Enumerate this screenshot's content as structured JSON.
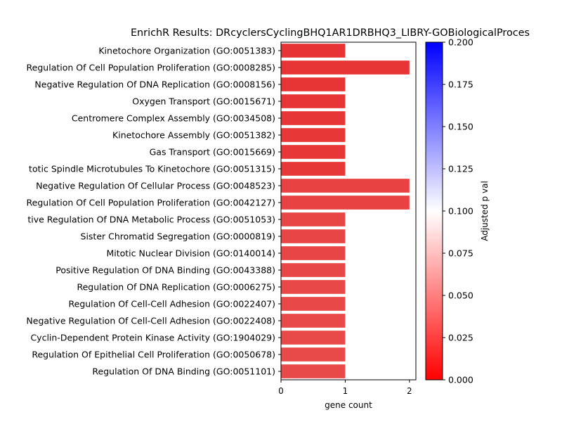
{
  "chart_data": {
    "type": "bar",
    "orientation": "horizontal",
    "title": "EnrichR Results: DRcyclersCyclingBHQ1AR1DRBHQ3_LIBRY-GOBiologicalProces",
    "xlabel": "gene count",
    "ylabel": "",
    "xlim": [
      0,
      2.1
    ],
    "xticks": [
      "0",
      "1",
      "2"
    ],
    "grid": false,
    "categories": [
      "Kinetochore Organization (GO:0051383)",
      "Regulation Of Cell Population Proliferation (GO:0008285)",
      "Negative Regulation Of DNA Replication (GO:0008156)",
      "Oxygen Transport (GO:0015671)",
      "Centromere Complex Assembly (GO:0034508)",
      "Kinetochore Assembly (GO:0051382)",
      "Gas Transport (GO:0015669)",
      "totic Spindle Microtubules To Kinetochore (GO:0051315)",
      "Negative Regulation Of Cellular Process (GO:0048523)",
      "Regulation Of Cell Population Proliferation (GO:0042127)",
      "tive Regulation Of DNA Metabolic Process (GO:0051053)",
      "Sister Chromatid Segregation (GO:0000819)",
      "Mitotic Nuclear Division (GO:0140014)",
      "Positive Regulation Of DNA Binding (GO:0043388)",
      "Regulation Of DNA Replication (GO:0006275)",
      "Regulation Of Cell-Cell Adhesion (GO:0022407)",
      "Negative Regulation Of Cell-Cell Adhesion (GO:0022408)",
      "Cyclin-Dependent Protein Kinase Activity (GO:1904029)",
      "Regulation Of Epithelial Cell Proliferation (GO:0050678)",
      "Regulation Of DNA Binding (GO:0051101)"
    ],
    "values": [
      1,
      2,
      1,
      1,
      1,
      1,
      1,
      1,
      2,
      2,
      1,
      1,
      1,
      1,
      1,
      1,
      1,
      1,
      1,
      1
    ],
    "bar_colors": [
      "#e73333",
      "#e73434",
      "#e73535",
      "#e73535",
      "#e73636",
      "#e73737",
      "#e73737",
      "#e73838",
      "#e84242",
      "#e84242",
      "#e84545",
      "#e84646",
      "#e84646",
      "#e84747",
      "#e84848",
      "#e84848",
      "#e84949",
      "#e84949",
      "#e84a4a",
      "#e84a4a"
    ],
    "colorbar": {
      "label": "Adjusted p val",
      "range": [
        0,
        0.2
      ],
      "ticks": [
        "0.000",
        "0.025",
        "0.050",
        "0.075",
        "0.100",
        "0.125",
        "0.150",
        "0.175",
        "0.200"
      ],
      "colormap": [
        "#ff0000",
        "#ffffff",
        "#0000ff"
      ]
    }
  }
}
